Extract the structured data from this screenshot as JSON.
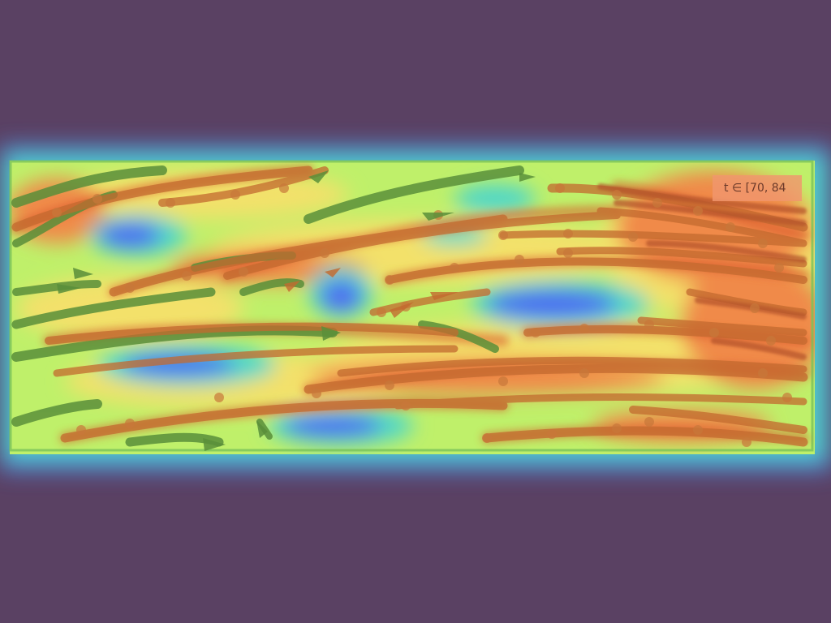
{
  "overlay": {
    "time_window_label": "t ∈ [70, 84"
  },
  "colors": {
    "background": "#5a4163",
    "heat_low": "#4f6bf0",
    "heat_mid_low": "#4fd7c8",
    "heat_mid": "#bff06a",
    "heat_mid_high": "#f3e16a",
    "heat_high": "#f08a4a",
    "heat_peak": "#d8572c",
    "track_green": "#4f8a3a",
    "track_brown": "#c86a2e"
  },
  "icons": {
    "track_marker": "circle-dot-icon",
    "track_head": "arrowhead-icon"
  }
}
